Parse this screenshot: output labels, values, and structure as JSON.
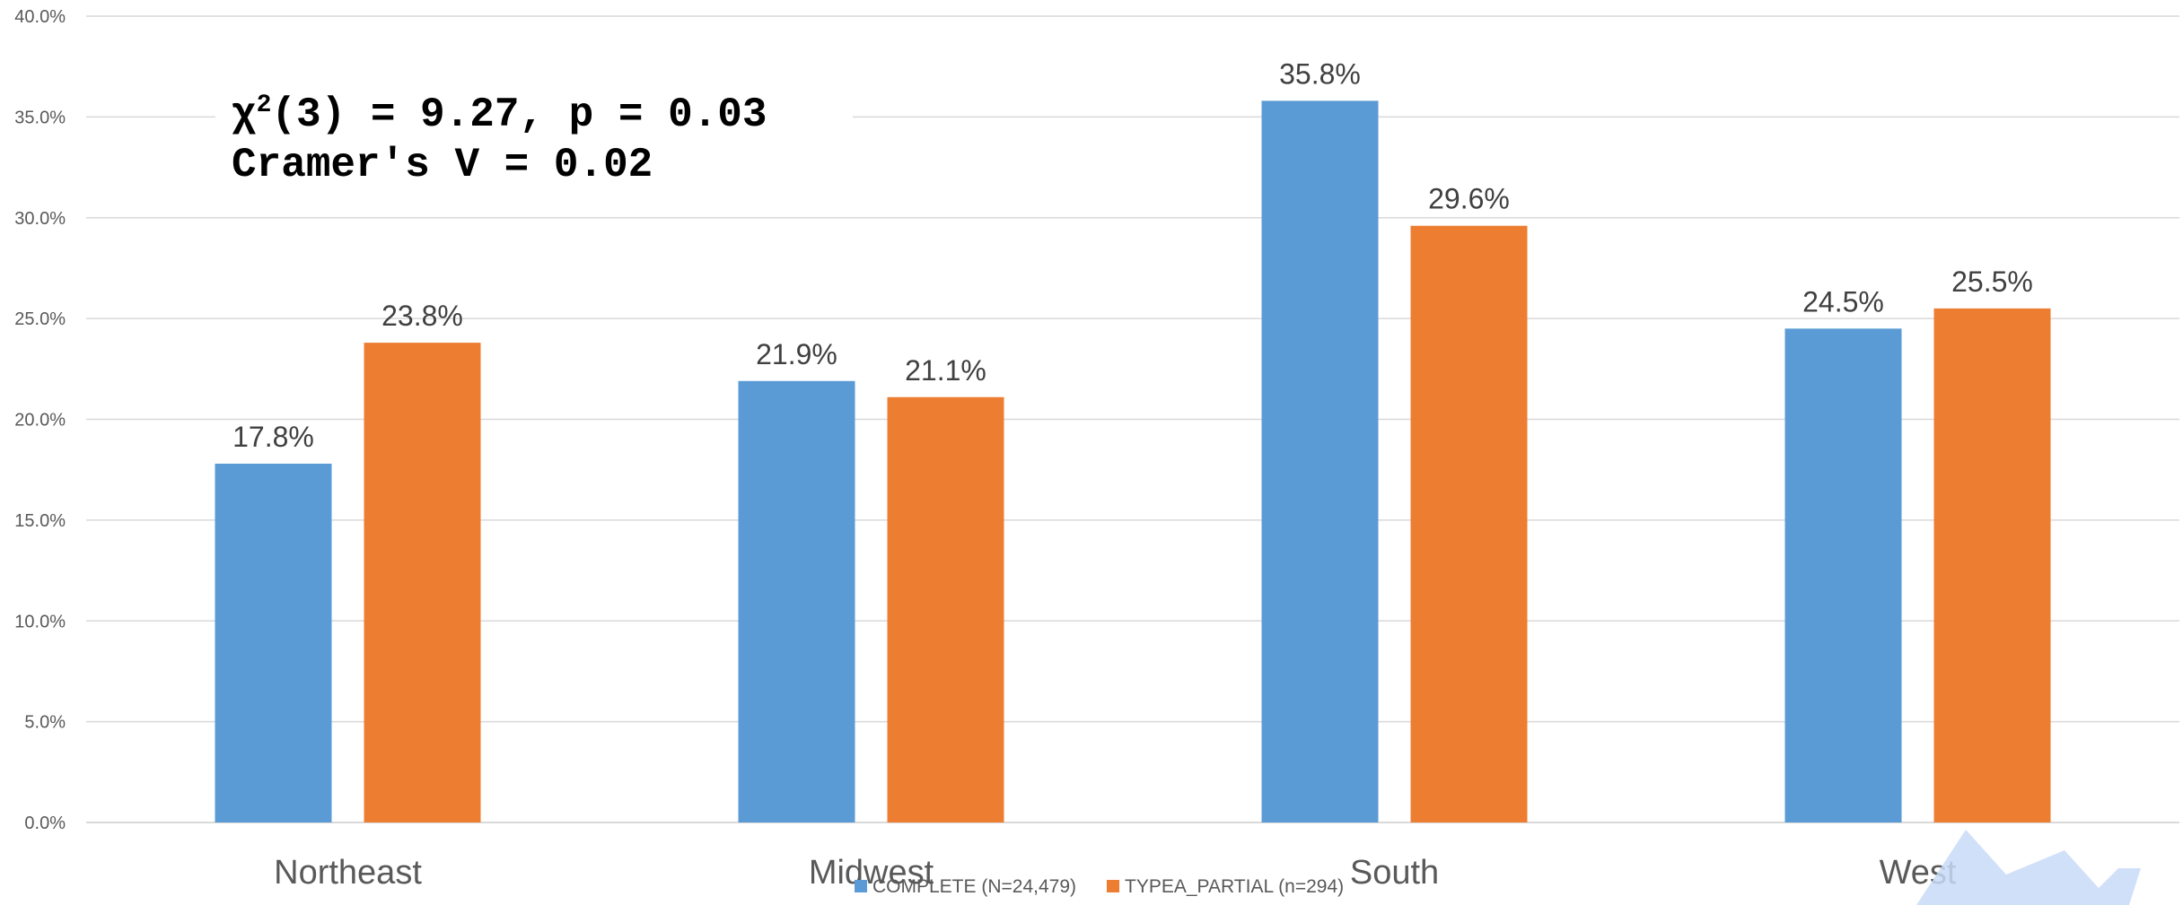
{
  "chart_data": {
    "type": "bar",
    "categories": [
      "Northeast",
      "Midwest",
      "South",
      "West"
    ],
    "series": [
      {
        "name": "COMPLETE (N=24,479)",
        "values": [
          17.8,
          21.9,
          35.8,
          24.5
        ],
        "labels": [
          "17.8%",
          "21.9%",
          "35.8%",
          "24.5%"
        ],
        "color": "#5b9bd5"
      },
      {
        "name": "TYPEA_PARTIAL (n=294)",
        "values": [
          23.8,
          21.1,
          29.6,
          25.5
        ],
        "labels": [
          "23.8%",
          "21.1%",
          "29.6%",
          "25.5%"
        ],
        "color": "#ed7d31"
      }
    ],
    "ylim": [
      0,
      40
    ],
    "yticks": [
      "0.0%",
      "5.0%",
      "10.0%",
      "15.0%",
      "20.0%",
      "25.0%",
      "30.0%",
      "35.0%",
      "40.0%"
    ],
    "grid": true,
    "legend": "bottom",
    "annotation": {
      "chi_symbol": "χ",
      "chi_sup": "2",
      "line1_rest": "(3) = 9.27, p = 0.03",
      "line2": "Cramer's V = 0.02"
    }
  }
}
